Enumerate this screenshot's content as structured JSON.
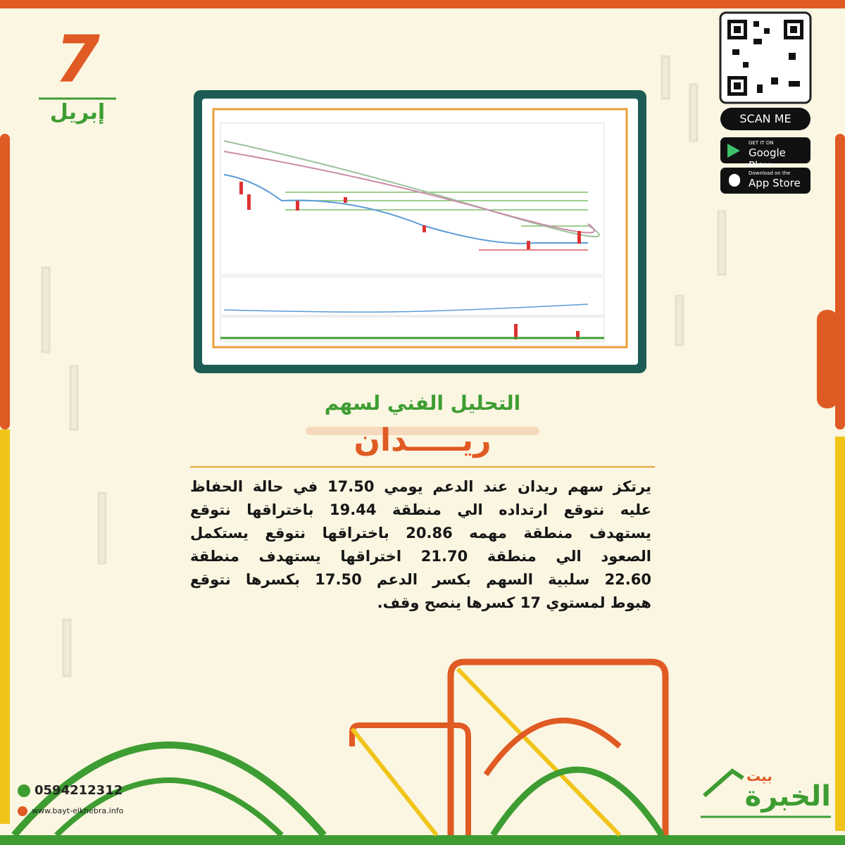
{
  "date": {
    "day": "7",
    "month": "إبريل"
  },
  "heading": {
    "title": "التحليل الفني لسهم",
    "stock": "ريـــــدان"
  },
  "body": {
    "lines": [
      "يرتكز سهم ريدان عند الدعم يومي 17.50 في حالة الحفاظ",
      "عليه نتوقع ارتداده الي منطقة 19.44 باختراقها نتوقع",
      "يستهدف منطقة مهمه 20.86 باختراقها نتوقع يستكمل",
      "الصعود الي منطقة 21.70 اختراقها يستهدف منطقة",
      "22.60 سلبية السهم بكسر الدعم 17.50 بكسرها نتوقع",
      "هبوط لمستوي 17 كسرها ينصح وقف."
    ]
  },
  "apps": {
    "scan": "SCAN ME",
    "google_small": "GET IT ON",
    "google": "Google Play",
    "apple_small": "Download on the",
    "apple": "App Store"
  },
  "contact": {
    "phone": "0594212312",
    "website": "www.bayt-elkhebra.info"
  },
  "logo": {
    "top": "بيت",
    "main": "الخبرة"
  }
}
